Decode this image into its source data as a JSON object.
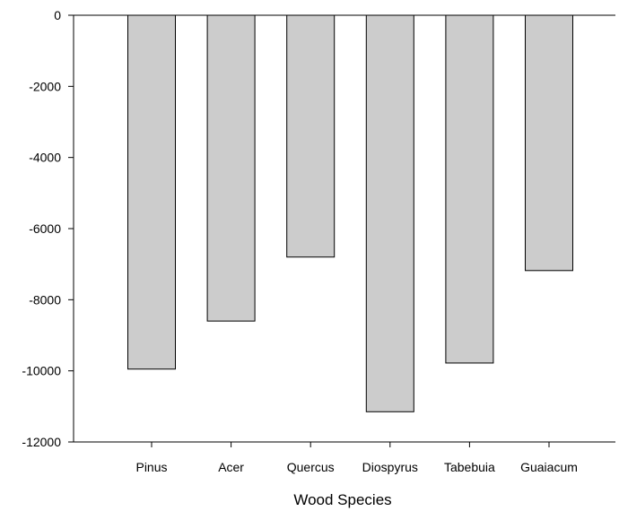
{
  "chart_data": {
    "type": "bar",
    "title": "",
    "xlabel": "Wood Species",
    "ylabel": "",
    "categories": [
      "Pinus",
      "Acer",
      "Quercus",
      "Diospyrus",
      "Tabebuia",
      "Guaiacum"
    ],
    "values": [
      -9950,
      -8600,
      -6800,
      -11150,
      -9780,
      -7180
    ],
    "ylim": [
      -12000,
      0
    ],
    "yticks": [
      "0",
      "-2000",
      "-4000",
      "-6000",
      "-8000",
      "-10000",
      "-12000"
    ],
    "grid": false,
    "legend": "none",
    "colors": {
      "bar_fill": "#cccccc",
      "bar_stroke": "#000000",
      "axis": "#000000"
    }
  }
}
